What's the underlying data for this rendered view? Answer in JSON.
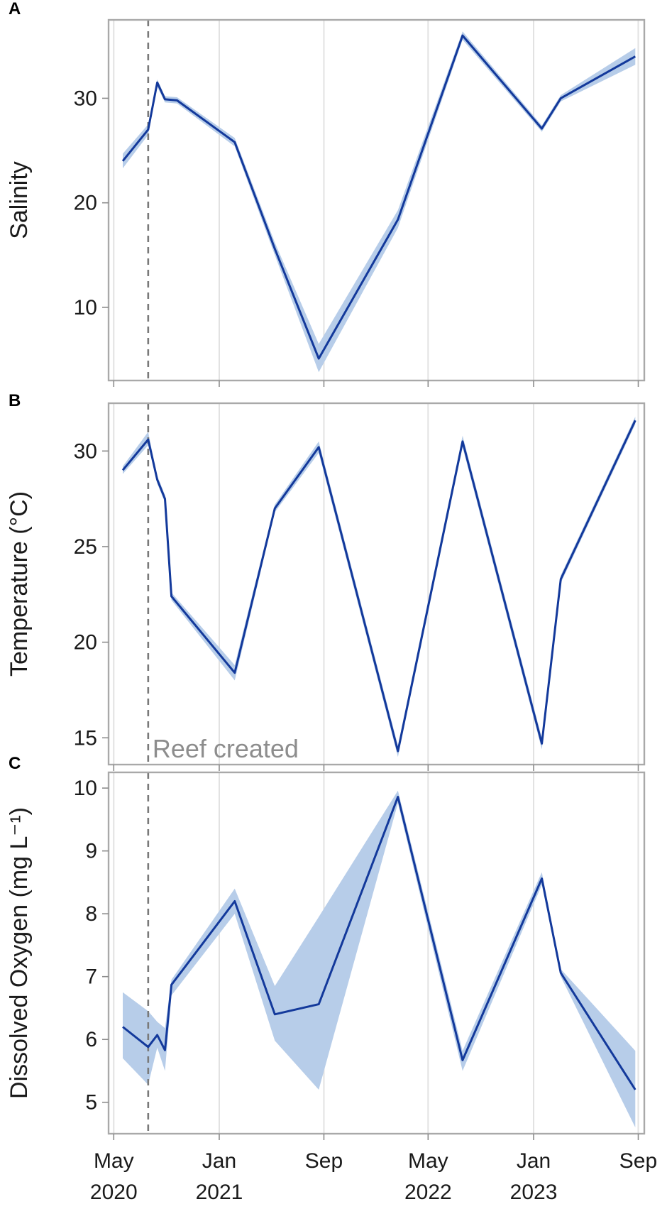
{
  "chart_data": [
    {
      "type": "line",
      "panel_label": "A",
      "ylabel": "Salinity",
      "yticks": [
        10,
        20,
        30
      ],
      "ylim": [
        3,
        37.5
      ],
      "xlim": [
        "2020-04-19",
        "2023-09-15"
      ],
      "grid": "vertical",
      "reference_line": "2020-07-20",
      "x": [
        "2020-05-22",
        "2020-07-20",
        "2020-08-10",
        "2020-08-28",
        "2020-09-25",
        "2021-02-06",
        "2021-05-10",
        "2021-08-20",
        "2022-02-20",
        "2022-07-20",
        "2023-01-20",
        "2023-03-05",
        "2023-08-25"
      ],
      "y": [
        24.0,
        27.0,
        31.5,
        29.9,
        29.8,
        25.8,
        15.6,
        5.1,
        18.4,
        36.0,
        27.1,
        30.0,
        34.0
      ],
      "lower": [
        23.3,
        26.5,
        31.1,
        29.6,
        29.5,
        25.4,
        15.0,
        3.8,
        17.6,
        35.6,
        26.8,
        29.7,
        33.2
      ],
      "upper": [
        24.7,
        27.5,
        31.8,
        30.2,
        30.1,
        26.2,
        16.2,
        6.5,
        19.3,
        36.4,
        27.4,
        30.3,
        34.8
      ]
    },
    {
      "type": "line",
      "panel_label": "B",
      "ylabel": "Temperature (°C)",
      "yticks": [
        15,
        20,
        25,
        30
      ],
      "ylim": [
        13.6,
        32.5
      ],
      "xlim": [
        "2020-04-19",
        "2023-09-15"
      ],
      "grid": "vertical",
      "reference_line": "2020-07-20",
      "annotation": "Reef created",
      "x": [
        "2020-05-22",
        "2020-07-20",
        "2020-08-10",
        "2020-08-28",
        "2020-09-12",
        "2021-02-06",
        "2021-05-10",
        "2021-08-20",
        "2022-02-20",
        "2022-07-20",
        "2023-01-20",
        "2023-03-05",
        "2023-08-25"
      ],
      "y": [
        29.0,
        30.6,
        28.5,
        27.5,
        22.4,
        18.4,
        27.0,
        30.2,
        14.3,
        30.5,
        14.7,
        23.3,
        31.6
      ],
      "lower": [
        28.8,
        30.3,
        28.3,
        27.3,
        22.2,
        18.0,
        26.8,
        29.9,
        14.0,
        30.2,
        14.4,
        23.1,
        31.4
      ],
      "upper": [
        29.2,
        31.0,
        28.7,
        27.7,
        22.6,
        18.8,
        27.2,
        30.5,
        14.6,
        30.8,
        15.0,
        23.5,
        31.8
      ]
    },
    {
      "type": "line",
      "panel_label": "C",
      "ylabel": "Dissolved Oxygen (mg L⁻¹)",
      "yticks": [
        5,
        6,
        7,
        8,
        9,
        10
      ],
      "ylim": [
        4.5,
        10.25
      ],
      "xlim": [
        "2020-04-19",
        "2023-09-15"
      ],
      "grid": "vertical",
      "reference_line": "2020-07-20",
      "x": [
        "2020-05-22",
        "2020-07-20",
        "2020-08-10",
        "2020-08-28",
        "2020-09-12",
        "2021-02-06",
        "2021-05-10",
        "2021-08-20",
        "2022-02-20",
        "2022-07-20",
        "2023-01-20",
        "2023-03-05",
        "2023-08-25"
      ],
      "y": [
        6.2,
        5.88,
        6.07,
        5.83,
        6.87,
        8.2,
        6.4,
        6.56,
        9.86,
        5.67,
        8.56,
        7.06,
        5.2
      ],
      "lower": [
        5.7,
        5.28,
        5.87,
        5.5,
        6.7,
        8.0,
        5.98,
        5.2,
        9.76,
        5.5,
        8.46,
        7.0,
        4.6
      ],
      "upper": [
        6.75,
        6.45,
        6.28,
        6.18,
        6.95,
        8.4,
        6.85,
        7.95,
        9.96,
        5.82,
        8.66,
        7.12,
        5.82
      ]
    }
  ],
  "x_axis": {
    "ticks": [
      {
        "date": "2020-05-01",
        "month": "May",
        "year": "2020"
      },
      {
        "date": "2021-01-01",
        "month": "Jan",
        "year": "2021"
      },
      {
        "date": "2021-09-01",
        "month": "Sep",
        "year": ""
      },
      {
        "date": "2022-05-01",
        "month": "May",
        "year": "2022"
      },
      {
        "date": "2023-01-01",
        "month": "Jan",
        "year": "2023"
      },
      {
        "date": "2023-09-01",
        "month": "Sep",
        "year": ""
      }
    ]
  },
  "colors": {
    "line": "#13399b",
    "band": "#b7cde9",
    "grid": "#e2e2e2",
    "frame": "#a9a9a9",
    "reference": "#7a7a7a",
    "annotation": "#8d8d8d"
  }
}
